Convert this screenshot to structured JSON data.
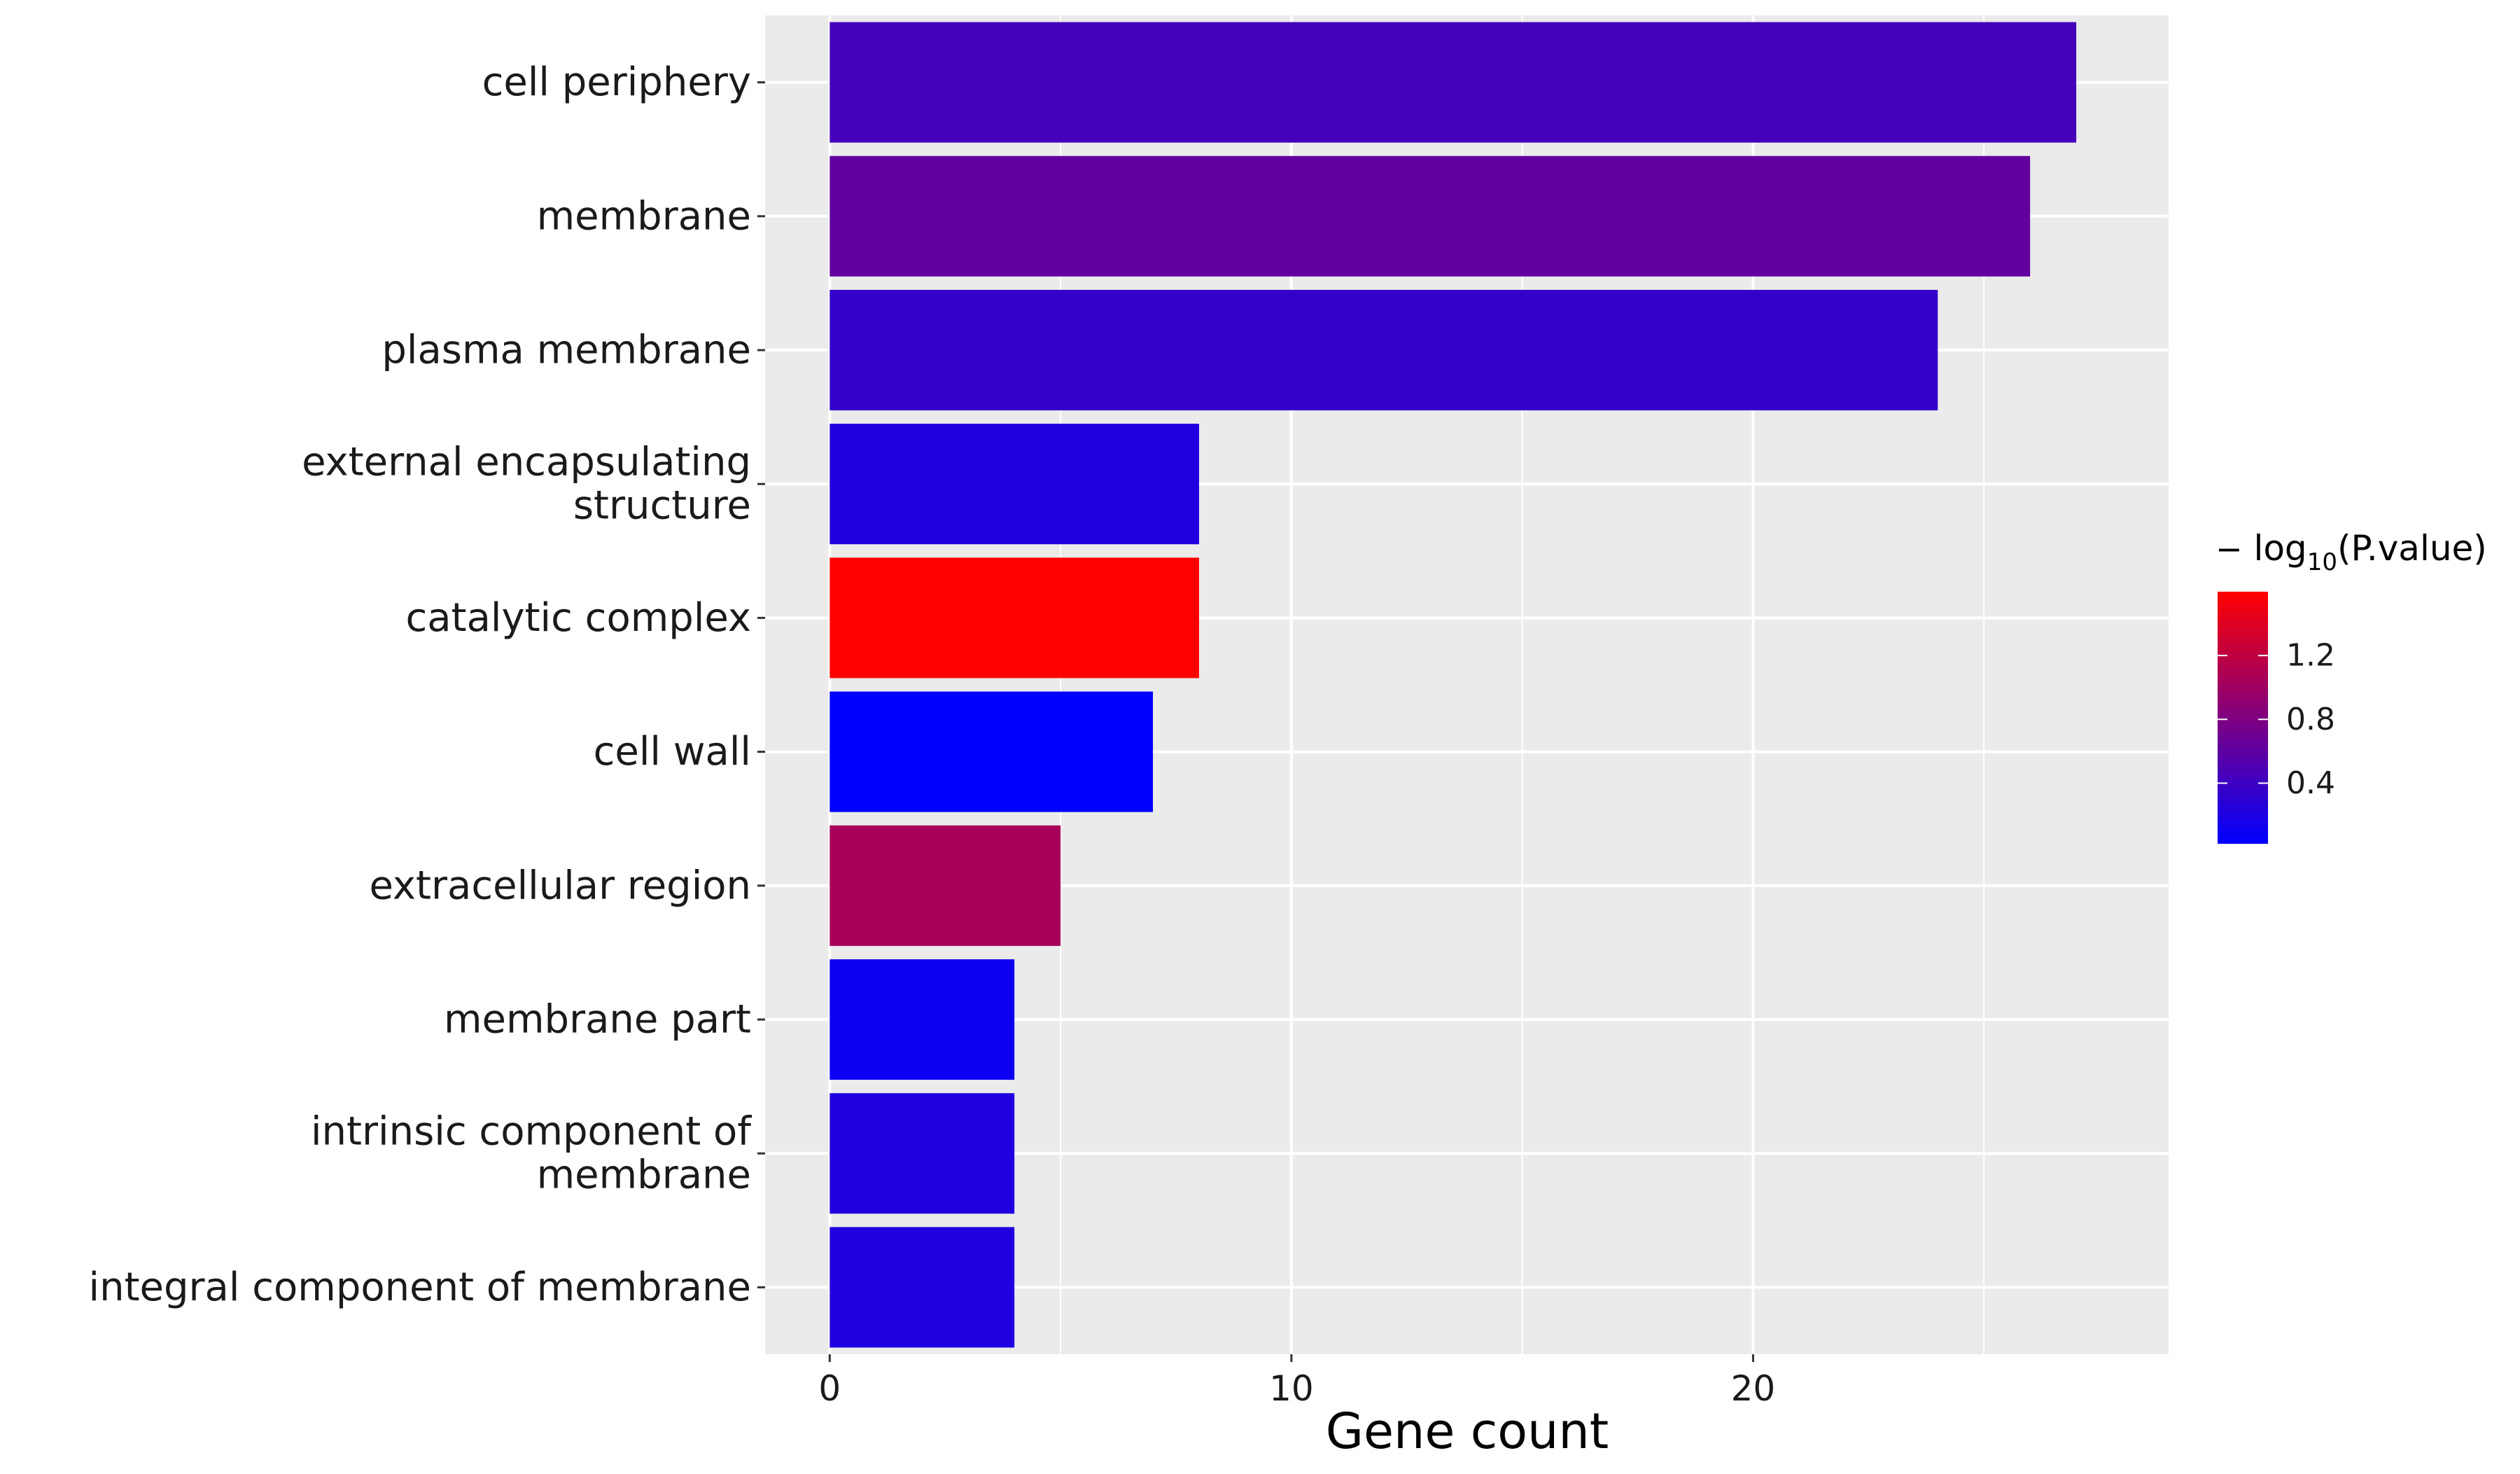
{
  "chart_data": {
    "type": "bar",
    "orientation": "horizontal",
    "categories": [
      [
        "cell periphery"
      ],
      [
        "membrane"
      ],
      [
        "plasma membrane"
      ],
      [
        "external encapsulating",
        "structure"
      ],
      [
        "catalytic complex"
      ],
      [
        "cell wall"
      ],
      [
        "extracellular region"
      ],
      [
        "membrane part"
      ],
      [
        "intrinsic component of",
        "membrane"
      ],
      [
        "integral component of membrane"
      ]
    ],
    "values": [
      27,
      26,
      24,
      8,
      8,
      7,
      5,
      4,
      4,
      4
    ],
    "neg_log10_pvalue": [
      0.45,
      0.62,
      0.35,
      0.22,
      1.6,
      0.02,
      1.05,
      0.1,
      0.22,
      0.22
    ],
    "xlabel": "Gene count",
    "xlim": [
      -1.4,
      29
    ],
    "xticks": [
      0,
      10,
      20
    ],
    "grid": true,
    "panel_background": "#EBEBEB",
    "legend": {
      "title_prefix": "−",
      "title_log": "log",
      "title_sub": "10",
      "title_rest": "(P.value)",
      "placement": "right",
      "range": [
        0.02,
        1.6
      ],
      "ticks": [
        0.4,
        0.8,
        1.2
      ],
      "tick_labels": [
        "0.4",
        "0.8",
        "1.2"
      ],
      "low_color": "#0000FF",
      "high_color": "#FF0000"
    }
  }
}
